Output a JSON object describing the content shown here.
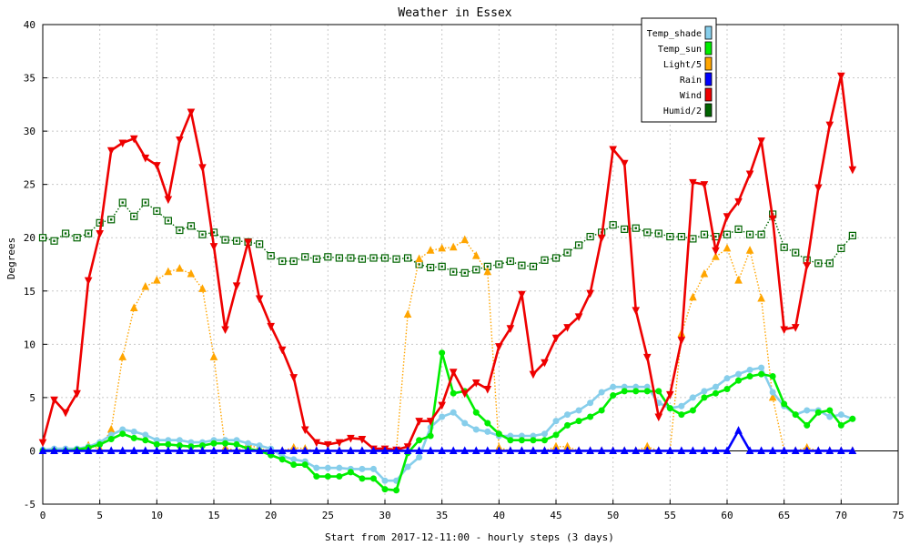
{
  "chart_data": {
    "type": "line",
    "title": "Weather in Essex",
    "xlabel": "Start from 2017-12-11:00 - hourly steps (3 days)",
    "ylabel": "Degrees",
    "xlim": [
      0,
      75
    ],
    "ylim": [
      -5,
      40
    ],
    "xticks": [
      0,
      5,
      10,
      15,
      20,
      25,
      30,
      35,
      40,
      45,
      50,
      55,
      60,
      65,
      70,
      75
    ],
    "yticks": [
      -5,
      0,
      5,
      10,
      15,
      20,
      25,
      30,
      35,
      40
    ],
    "grid": true,
    "legend_position": "top-right",
    "x": [
      0,
      1,
      2,
      3,
      4,
      5,
      6,
      7,
      8,
      9,
      10,
      11,
      12,
      13,
      14,
      15,
      16,
      17,
      18,
      19,
      20,
      21,
      22,
      23,
      24,
      25,
      26,
      27,
      28,
      29,
      30,
      31,
      32,
      33,
      34,
      35,
      36,
      37,
      38,
      39,
      40,
      41,
      42,
      43,
      44,
      45,
      46,
      47,
      48,
      49,
      50,
      51,
      52,
      53,
      54,
      55,
      56,
      57,
      58,
      59,
      60,
      61,
      62,
      63,
      64,
      65,
      66,
      67,
      68,
      69,
      70,
      71
    ],
    "series": [
      {
        "name": "Temp_shade",
        "color": "#87ceeb",
        "marker": "circle",
        "line": "solid",
        "values": [
          0.1,
          0.2,
          0.2,
          0.2,
          0.4,
          0.8,
          1.5,
          2.0,
          1.8,
          1.5,
          1.0,
          1.0,
          1.0,
          0.8,
          0.8,
          1.0,
          1.0,
          1.0,
          0.7,
          0.5,
          0.2,
          -0.5,
          -0.8,
          -1.0,
          -1.6,
          -1.6,
          -1.6,
          -1.7,
          -1.7,
          -1.7,
          -2.8,
          -2.8,
          -1.5,
          -0.6,
          2.2,
          3.2,
          3.6,
          2.6,
          2.0,
          1.8,
          1.4,
          1.4,
          1.4,
          1.4,
          1.6,
          2.8,
          3.4,
          3.8,
          4.5,
          5.5,
          6.0,
          6.0,
          6.0,
          6.0,
          4.5,
          4.0,
          4.2,
          5.0,
          5.6,
          6.0,
          6.8,
          7.2,
          7.6,
          7.8,
          5.5,
          4.2,
          3.4,
          3.8,
          3.8,
          3.2,
          3.4,
          3.0
        ]
      },
      {
        "name": "Temp_sun",
        "color": "#00ee00",
        "marker": "circle",
        "line": "solid",
        "values": [
          0.0,
          0.0,
          0.0,
          0.1,
          0.3,
          0.6,
          1.1,
          1.6,
          1.2,
          1.0,
          0.6,
          0.6,
          0.5,
          0.4,
          0.5,
          0.7,
          0.7,
          0.6,
          0.2,
          0.0,
          -0.4,
          -0.8,
          -1.3,
          -1.3,
          -2.4,
          -2.4,
          -2.4,
          -2.0,
          -2.6,
          -2.6,
          -3.6,
          -3.7,
          -0.2,
          1.0,
          1.4,
          9.2,
          5.4,
          5.6,
          3.6,
          2.6,
          1.6,
          1.0,
          1.0,
          1.0,
          1.0,
          1.5,
          2.4,
          2.8,
          3.2,
          3.8,
          5.2,
          5.6,
          5.6,
          5.6,
          5.6,
          4.0,
          3.4,
          3.8,
          5.0,
          5.4,
          5.8,
          6.6,
          7.0,
          7.2,
          7.0,
          4.4,
          3.4,
          2.4,
          3.6,
          3.8,
          2.4,
          3.0
        ]
      },
      {
        "name": "Light/5",
        "color": "#ffa500",
        "marker": "triangle-up",
        "line": "dotted",
        "values": [
          0.0,
          0.0,
          0.0,
          0.0,
          0.5,
          0.2,
          2.0,
          8.8,
          13.4,
          15.4,
          16.0,
          16.8,
          17.1,
          16.6,
          15.2,
          8.8,
          0.3,
          0.0,
          0.6,
          0.2,
          0.0,
          0.0,
          0.3,
          0.2,
          0.0,
          0.0,
          0.0,
          0.0,
          0.0,
          0.0,
          0.0,
          0.0,
          12.8,
          18.0,
          18.8,
          19.0,
          19.1,
          19.8,
          18.3,
          16.8,
          0.3,
          0.0,
          0.0,
          0.0,
          0.0,
          0.4,
          0.4,
          0.0,
          0.0,
          0.0,
          0.0,
          0.0,
          0.0,
          0.4,
          0.0,
          0.0,
          11.0,
          14.4,
          16.6,
          18.2,
          19.0,
          16.0,
          18.8,
          14.3,
          5.0,
          0.0,
          0.0,
          0.3,
          0.0,
          0.0,
          0.0,
          0.0
        ]
      },
      {
        "name": "Rain",
        "color": "#0000ff",
        "marker": "triangle-up",
        "line": "solid",
        "values": [
          0,
          0,
          0,
          0,
          0,
          0,
          0,
          0,
          0,
          0,
          0,
          0,
          0,
          0,
          0,
          0,
          0,
          0,
          0,
          0,
          0,
          0,
          0,
          0,
          0,
          0,
          0,
          0,
          0,
          0,
          0,
          0,
          0,
          0,
          0,
          0,
          0,
          0,
          0,
          0,
          0,
          0,
          0,
          0,
          0,
          0,
          0,
          0,
          0,
          0,
          0,
          0,
          0,
          0,
          0,
          0,
          0,
          0,
          0,
          0,
          0,
          1.9,
          0,
          0,
          0,
          0,
          0,
          0,
          0,
          0,
          0,
          0
        ]
      },
      {
        "name": "Wind",
        "color": "#ee0000",
        "marker": "triangle-down",
        "line": "solid",
        "values": [
          0.8,
          4.8,
          3.6,
          5.4,
          16.0,
          20.4,
          28.2,
          28.9,
          29.3,
          27.5,
          26.8,
          23.6,
          29.2,
          31.8,
          26.6,
          19.2,
          11.4,
          15.5,
          19.6,
          14.3,
          11.7,
          9.5,
          6.9,
          2.0,
          0.8,
          0.6,
          0.8,
          1.2,
          1.1,
          0.2,
          0.2,
          0.1,
          0.4,
          2.8,
          2.8,
          4.3,
          7.4,
          5.4,
          6.4,
          5.8,
          9.8,
          11.5,
          14.7,
          7.2,
          8.3,
          10.6,
          11.6,
          12.6,
          14.8,
          20.0,
          28.3,
          27.0,
          13.2,
          8.8,
          3.2,
          5.3,
          10.4,
          25.2,
          25.0,
          18.8,
          22.0,
          23.4,
          26.0,
          29.1,
          21.8,
          11.4,
          11.6,
          17.4,
          24.7,
          30.6,
          35.2,
          26.4
        ]
      },
      {
        "name": "Humid/2",
        "color": "#006400",
        "marker": "square-open",
        "line": "dotted",
        "values": [
          20.0,
          19.7,
          20.4,
          20.0,
          20.4,
          21.4,
          21.7,
          23.3,
          22.0,
          23.3,
          22.5,
          21.6,
          20.7,
          21.1,
          20.3,
          20.5,
          19.8,
          19.7,
          19.6,
          19.4,
          18.3,
          17.8,
          17.8,
          18.2,
          18.0,
          18.2,
          18.1,
          18.1,
          18.0,
          18.1,
          18.1,
          18.0,
          18.1,
          17.5,
          17.2,
          17.3,
          16.8,
          16.7,
          17.0,
          17.3,
          17.5,
          17.8,
          17.4,
          17.3,
          17.9,
          18.1,
          18.6,
          19.3,
          20.1,
          20.5,
          21.2,
          20.8,
          20.9,
          20.5,
          20.4,
          20.1,
          20.1,
          19.9,
          20.3,
          20.1,
          20.3,
          20.8,
          20.3,
          20.3,
          22.2,
          19.1,
          18.6,
          17.9,
          17.6,
          17.6,
          19.0,
          20.2
        ]
      }
    ]
  }
}
